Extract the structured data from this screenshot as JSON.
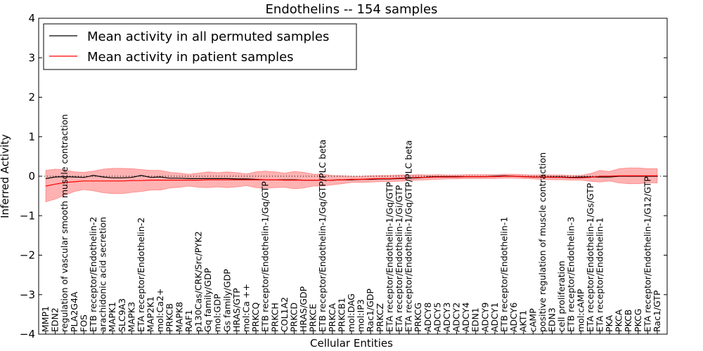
{
  "chart_data": {
    "type": "line",
    "title": "Endothelins -- 154 samples",
    "xlabel": "Cellular Entities",
    "ylabel": "Inferred Activity",
    "ylim": [
      -4,
      4
    ],
    "yticks": [
      -4,
      -3,
      -2,
      -1,
      0,
      1,
      2,
      3,
      4
    ],
    "legend_position": "top-left",
    "categories": [
      "MMP1",
      "EDN2",
      "regulation of vascular smooth muscle contraction",
      "PLA2G4A",
      "FOS",
      "ETB receptor/Endothelin-2",
      "arachidonic acid secretion",
      "MAPK1",
      "SLC9A3",
      "MAPK3",
      "ETA receptor/Endothelin-2",
      "MAP2K1",
      "mol:Ca2+",
      "PRKCB",
      "MAPK8",
      "RAF1",
      "p130Cas/CRK/Src/PYK2",
      "Gq family/GDP",
      "mol:GDP",
      "Gs family/GDP",
      "HRAS/GTP",
      "mol:Ca ++",
      "PRKCQ",
      "ETB receptor/Endothelin-1/Gq/GTP",
      "PRKCH",
      "COL1A2",
      "PRKCD",
      "HRAS/GDP",
      "PRKCE",
      "ETB receptor/Endothelin-1/Gq/GTP/PLC beta",
      "PRKCA",
      "PRKCB1",
      "mol:DAG",
      "mol:IP3",
      "Rac1/GDP",
      "PRKCZ",
      "ETA receptor/Endothelin-1/Gq/GTP",
      "ETA receptor/Endothelin-1/Gi/GTP",
      "ETA receptor/Endothelin-1/Gq/GTP/PLC beta",
      "PRKCG",
      "ADCY8",
      "ADCY5",
      "ADCY3",
      "ADCY2",
      "ADCY4",
      "EDN1",
      "ADCY9",
      "ADCY1",
      "ETB receptor/Endothelin-1",
      "ADCY6",
      "AKT1",
      "cAMP",
      "positive regulation of muscle contraction",
      "EDN3",
      "cell proliferation",
      "ETB receptor/Endothelin-3",
      "mol:cAMP",
      "ETA receptor/Endothelin-1/Gs/GTP",
      "ETA receptor/Endothelin-1",
      "PKA",
      "PKCA",
      "PKCB",
      "PKCG",
      "ETA receptor/Endothelin-1/G12/GTP",
      "Rac1/GTP"
    ],
    "series": [
      {
        "name": "Mean activity in all permuted samples",
        "color": "#000000",
        "values": [
          -0.06,
          -0.02,
          -0.01,
          -0.02,
          -0.03,
          0.02,
          -0.02,
          -0.04,
          -0.04,
          -0.03,
          0.02,
          -0.03,
          -0.02,
          -0.05,
          -0.05,
          -0.06,
          -0.06,
          -0.06,
          -0.06,
          -0.06,
          -0.07,
          -0.07,
          -0.08,
          -0.09,
          -0.09,
          -0.09,
          -0.09,
          -0.1,
          -0.1,
          -0.1,
          -0.1,
          -0.09,
          -0.09,
          -0.08,
          -0.08,
          -0.07,
          -0.07,
          -0.06,
          -0.05,
          -0.04,
          -0.02,
          -0.01,
          -0.01,
          -0.01,
          -0.01,
          -0.01,
          -0.01,
          0.0,
          0.01,
          0.0,
          -0.01,
          -0.02,
          -0.02,
          -0.02,
          -0.02,
          -0.03,
          -0.02,
          -0.02,
          -0.02,
          -0.02,
          0.0,
          0.0,
          0.0,
          0.0,
          0.0
        ]
      },
      {
        "name": "Mean activity in patient samples",
        "color": "#ff0000",
        "values": [
          -0.25,
          -0.2,
          -0.16,
          -0.14,
          -0.12,
          -0.12,
          -0.12,
          -0.12,
          -0.12,
          -0.11,
          -0.11,
          -0.1,
          -0.1,
          -0.1,
          -0.1,
          -0.1,
          -0.1,
          -0.09,
          -0.09,
          -0.09,
          -0.09,
          -0.09,
          -0.09,
          -0.09,
          -0.09,
          -0.1,
          -0.1,
          -0.1,
          -0.1,
          -0.1,
          -0.1,
          -0.09,
          -0.08,
          -0.08,
          -0.07,
          -0.06,
          -0.06,
          -0.05,
          -0.04,
          -0.03,
          -0.03,
          -0.02,
          -0.02,
          -0.02,
          -0.01,
          -0.01,
          -0.01,
          -0.01,
          0.0,
          0.0,
          -0.01,
          -0.02,
          -0.02,
          -0.03,
          -0.03,
          -0.04,
          -0.04,
          -0.03,
          0.0,
          0.0,
          0.01,
          0.01,
          0.01,
          0.01,
          0.01
        ],
        "band_half_width": [
          0.4,
          0.38,
          0.32,
          0.25,
          0.22,
          0.25,
          0.3,
          0.32,
          0.32,
          0.3,
          0.28,
          0.25,
          0.25,
          0.2,
          0.18,
          0.15,
          0.18,
          0.2,
          0.18,
          0.2,
          0.18,
          0.15,
          0.2,
          0.22,
          0.2,
          0.18,
          0.22,
          0.2,
          0.15,
          0.15,
          0.12,
          0.1,
          0.08,
          0.08,
          0.08,
          0.08,
          0.08,
          0.08,
          0.07,
          0.07,
          0.06,
          0.06,
          0.05,
          0.05,
          0.05,
          0.05,
          0.05,
          0.05,
          0.05,
          0.05,
          0.05,
          0.05,
          0.06,
          0.06,
          0.06,
          0.06,
          0.06,
          0.1,
          0.15,
          0.12,
          0.18,
          0.2,
          0.2,
          0.18,
          0.18
        ]
      }
    ]
  }
}
